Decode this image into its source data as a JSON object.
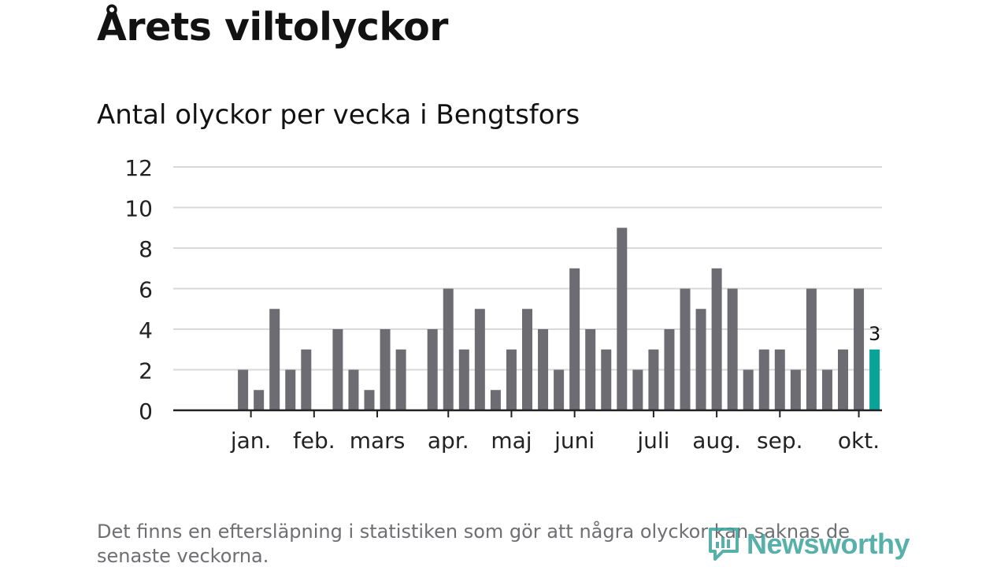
{
  "page": {
    "title": "Årets viltolyckor",
    "subtitle": "Antal olyckor per vecka i Bengtsfors",
    "footnote": "Det finns en eftersläpning i statistiken som gör att några olyckor kan saknas de senaste veckorna.",
    "logo_text": "Newsworthy"
  },
  "chart_data": {
    "type": "bar",
    "title": "Antal olyckor per vecka i Bengtsfors",
    "xlabel": "",
    "ylabel": "",
    "ylim": [
      0,
      12
    ],
    "yticks": [
      0,
      2,
      4,
      6,
      8,
      10,
      12
    ],
    "grid": true,
    "values": [
      0,
      0,
      2,
      1,
      5,
      2,
      3,
      0,
      4,
      2,
      1,
      4,
      3,
      0,
      4,
      6,
      3,
      5,
      1,
      3,
      5,
      4,
      2,
      7,
      4,
      3,
      9,
      2,
      3,
      4,
      6,
      5,
      7,
      6,
      2,
      3,
      3,
      2,
      6,
      2,
      3,
      6,
      3
    ],
    "month_labels": [
      {
        "label": "jan.",
        "index": 2.5
      },
      {
        "label": "feb.",
        "index": 6.5
      },
      {
        "label": "mars",
        "index": 10.5
      },
      {
        "label": "apr.",
        "index": 15
      },
      {
        "label": "maj",
        "index": 19
      },
      {
        "label": "juni",
        "index": 23
      },
      {
        "label": "juli",
        "index": 28
      },
      {
        "label": "aug.",
        "index": 32
      },
      {
        "label": "sep.",
        "index": 36
      },
      {
        "label": "okt.",
        "index": 41
      }
    ],
    "month_ticks": [
      2.5,
      6.5,
      10.5,
      15,
      19,
      23,
      28,
      32,
      36,
      41
    ],
    "highlight_label": "3",
    "colors": {
      "bar": "#6d6c72",
      "highlight": "#0aa39a",
      "grid": "#d9d9d9",
      "axis": "#222222",
      "tick_label": "#222222"
    }
  }
}
